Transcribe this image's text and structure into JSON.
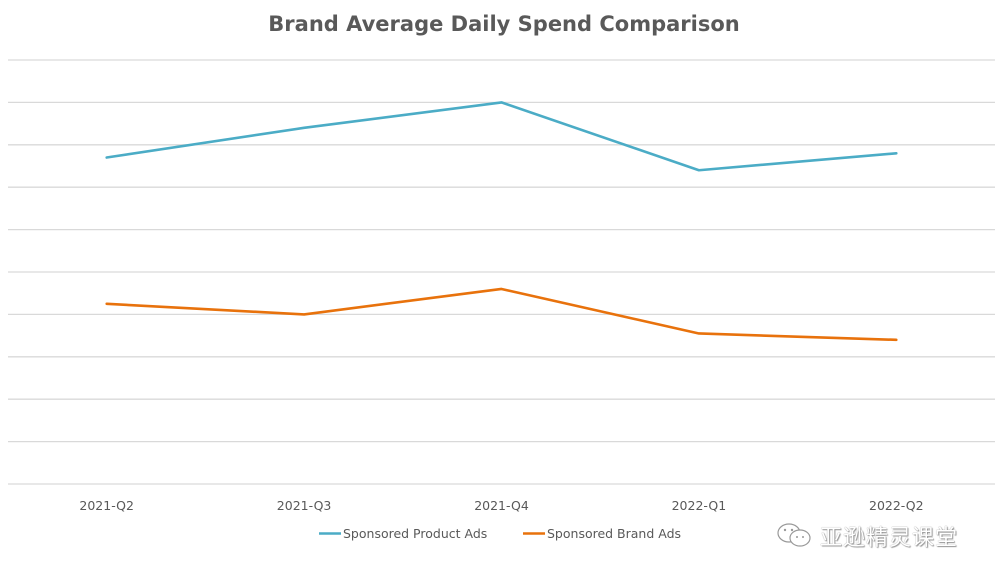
{
  "chart_data": {
    "type": "line",
    "title": "Brand Average Daily Spend Comparison",
    "xlabel": "",
    "ylabel": "",
    "y_axis_labels_shown": false,
    "y_units_note": "No y-axis tick labels are shown; values are expressed in gridline units (bottom gridline = 0, top gridline = 10).",
    "ylim": [
      0,
      10
    ],
    "grid": true,
    "gridline_count": 11,
    "categories": [
      "2021-Q2",
      "2021-Q3",
      "2021-Q4",
      "2022-Q1",
      "2022-Q2"
    ],
    "series": [
      {
        "name": "Sponsored Product Ads",
        "color": "#4BACC6",
        "values": [
          7.7,
          8.4,
          9.0,
          7.4,
          7.8
        ]
      },
      {
        "name": "Sponsored Brand Ads",
        "color": "#E8720C",
        "values": [
          4.25,
          4.0,
          4.6,
          3.55,
          3.4
        ]
      }
    ],
    "legend": {
      "position": "bottom"
    }
  },
  "watermark": {
    "text": "亚逊精灵课堂",
    "icon": "wechat-icon"
  }
}
